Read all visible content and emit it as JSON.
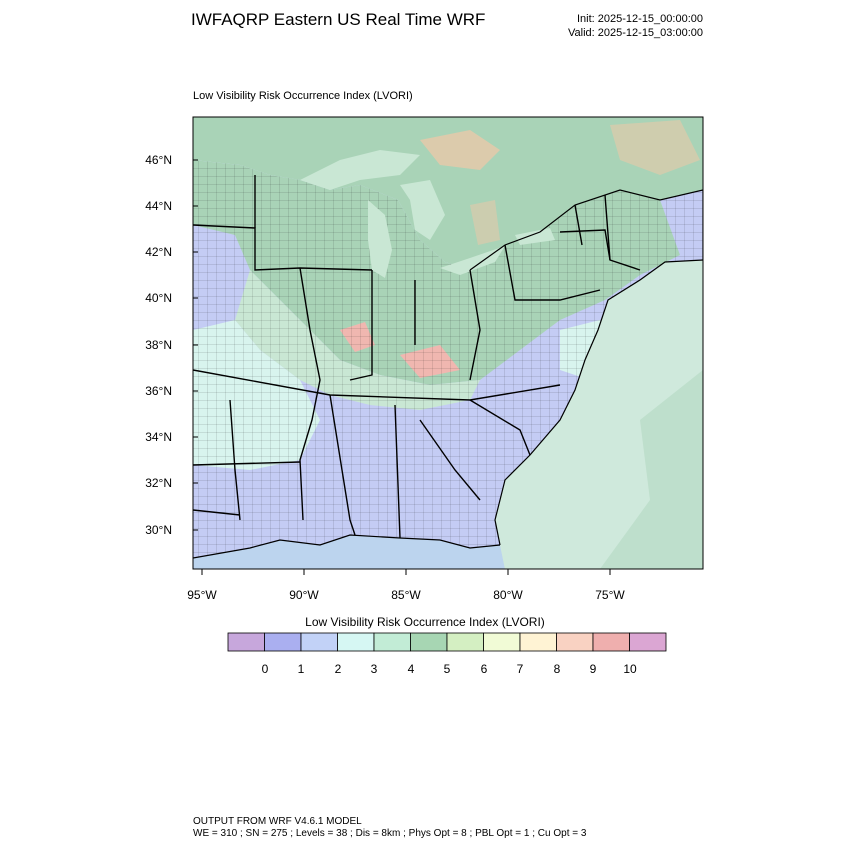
{
  "header": {
    "title": "IWFAQRP Eastern US Real Time WRF",
    "init": "Init: 2025-12-15_00:00:00",
    "valid": "Valid: 2025-12-15_03:00:00"
  },
  "map": {
    "subtitle": "Low Visibility Risk Occurrence Index   (LVORI)",
    "lat_labels": [
      "46°N",
      "44°N",
      "42°N",
      "40°N",
      "38°N",
      "36°N",
      "34°N",
      "32°N",
      "30°N"
    ],
    "lon_labels": [
      "95°W",
      "90°W",
      "85°W",
      "80°W",
      "75°W"
    ],
    "colors": {
      "ocean": "#cfe9dc",
      "land_high_index": "#a9d3b7",
      "land_mid_index": "#c9e7d4",
      "land_low_index": "#c4ccf4",
      "land_low_index_2": "#d8f4ee",
      "hotspot": "#f0b7b0",
      "terrain": "#e9c9a9",
      "deep_water": "#bcd4ee",
      "boundaries": "#000000"
    }
  },
  "colorbar": {
    "title": "Low Visibility Risk Occurrence Index  (LVORI)",
    "labels": [
      "0",
      "1",
      "2",
      "3",
      "4",
      "5",
      "6",
      "7",
      "8",
      "9",
      "10"
    ],
    "colors": [
      "#c7a7dc",
      "#aaaff0",
      "#c2d2f7",
      "#d6f7f3",
      "#c2ecd6",
      "#a7d6b3",
      "#d4efc2",
      "#f1fbd6",
      "#fff3d4",
      "#f9d2c2",
      "#efafae",
      "#dba6d3"
    ]
  },
  "footer": {
    "line1": "OUTPUT FROM WRF V4.6.1 MODEL",
    "line2": "WE = 310 ; SN = 275 ; Levels = 38 ; Dis = 8km ; Phys Opt = 8 ; PBL Opt = 1 ; Cu Opt = 3"
  }
}
